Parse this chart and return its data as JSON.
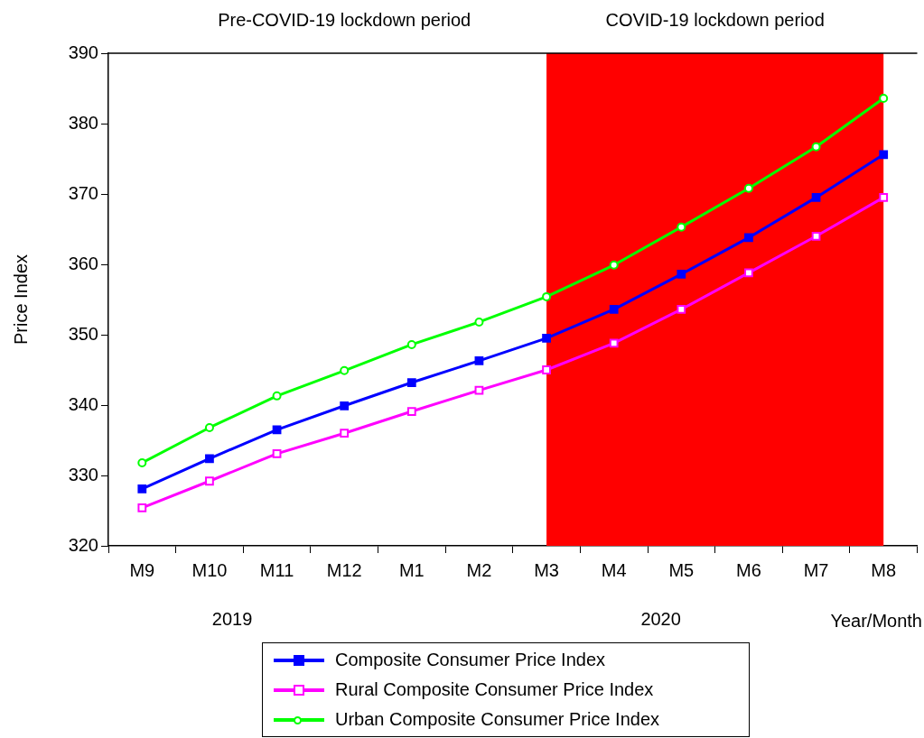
{
  "chart_data": {
    "type": "line",
    "xlabel": "Year/Month",
    "ylabel": "Price Index",
    "categories": [
      "M9",
      "M10",
      "M11",
      "M12",
      "M1",
      "M2",
      "M3",
      "M4",
      "M5",
      "M6",
      "M7",
      "M8"
    ],
    "series": [
      {
        "name": "Composite Consumer Price Index",
        "color": "#0000ff",
        "marker": "square",
        "values": [
          328.1,
          332.4,
          336.5,
          339.9,
          343.2,
          346.3,
          349.5,
          353.6,
          358.6,
          363.8,
          369.5,
          375.6
        ]
      },
      {
        "name": "Rural Composite Consumer Price Index",
        "color": "#ff00ff",
        "marker": "square",
        "values": [
          325.4,
          329.2,
          333.1,
          336.0,
          339.1,
          342.1,
          345.0,
          348.8,
          353.6,
          358.8,
          364.0,
          369.5
        ]
      },
      {
        "name": "Urban Composite Consumer Price Index",
        "color": "#00ff00",
        "marker": "circle",
        "values": [
          331.8,
          336.8,
          341.3,
          344.9,
          348.6,
          351.8,
          355.4,
          359.9,
          365.3,
          370.8,
          376.7,
          383.6
        ]
      }
    ],
    "ylim": [
      320,
      390
    ],
    "yticks": [
      320,
      330,
      340,
      350,
      360,
      370,
      380,
      390
    ],
    "grid": false,
    "legend": "bottom",
    "bands": [
      {
        "axis": "x",
        "from": "M3",
        "to": "M8",
        "label": "COVID-19 lockdown period",
        "color": "#ff0000"
      }
    ],
    "annotations": [
      "Pre-COVID-19 lockdown period",
      "2019",
      "2020"
    ]
  }
}
